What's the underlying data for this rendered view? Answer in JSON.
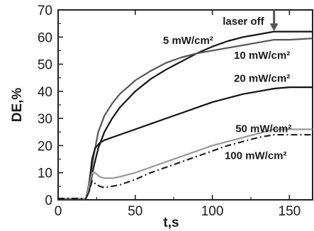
{
  "chart_data": {
    "type": "line",
    "xlabel": "t,s",
    "ylabel": "DE,%",
    "xlim": [
      0,
      165
    ],
    "ylim": [
      0,
      70
    ],
    "x_ticks": [
      0,
      50,
      100,
      150
    ],
    "y_ticks": [
      0,
      10,
      20,
      30,
      40,
      50,
      60,
      70
    ],
    "grid": false,
    "annotations": [
      {
        "text": "laser off",
        "x": 140,
        "y": 70
      }
    ],
    "series": [
      {
        "name": "5 mW/cm²",
        "color": "#111111",
        "style": "solid",
        "x": [
          0,
          18,
          20,
          23,
          26,
          30,
          35,
          40,
          50,
          60,
          70,
          80,
          90,
          100,
          110,
          120,
          130,
          140,
          150,
          165
        ],
        "y": [
          0.5,
          0.5,
          3,
          12,
          19,
          25,
          30,
          34,
          40,
          44.5,
          48,
          51,
          54,
          56.5,
          58.5,
          60,
          61,
          62,
          62,
          62
        ]
      },
      {
        "name": "10 mW/cm²",
        "color": "#555555",
        "style": "solid",
        "x": [
          0,
          18,
          20,
          23,
          26,
          30,
          35,
          40,
          50,
          60,
          70,
          80,
          90,
          100,
          110,
          120,
          130,
          140,
          150,
          165
        ],
        "y": [
          0.5,
          0.5,
          6,
          16,
          25,
          31,
          35.5,
          39,
          44,
          47.5,
          50.5,
          52.5,
          54,
          55,
          56,
          57,
          58,
          59,
          59,
          59.5
        ]
      },
      {
        "name": "20 mW/cm²",
        "color": "#111111",
        "style": "solid",
        "x": [
          0,
          18,
          20,
          22,
          24,
          27,
          30,
          40,
          50,
          60,
          70,
          80,
          90,
          100,
          110,
          120,
          130,
          140,
          150,
          165
        ],
        "y": [
          0.5,
          0.5,
          5,
          15,
          19,
          21,
          22,
          24,
          26,
          28,
          30,
          32,
          34,
          36,
          37.5,
          39,
          40,
          41,
          41.5,
          41.5
        ]
      },
      {
        "name": "50 mW/cm²",
        "color": "#999999",
        "style": "solid",
        "x": [
          0,
          18,
          20,
          22,
          24,
          27,
          30,
          35,
          40,
          50,
          60,
          70,
          80,
          90,
          100,
          110,
          120,
          130,
          140,
          150,
          165
        ],
        "y": [
          0.5,
          0.5,
          5,
          10,
          10,
          8.5,
          8,
          8,
          8.5,
          10,
          12,
          14,
          16,
          18,
          20,
          21.5,
          23,
          24.5,
          26,
          26,
          26
        ]
      },
      {
        "name": "100 mW/cm²",
        "color": "#222222",
        "style": "dashdot",
        "x": [
          0,
          18,
          20,
          22,
          24,
          27,
          30,
          35,
          40,
          50,
          60,
          70,
          80,
          90,
          100,
          110,
          120,
          130,
          140,
          150,
          165
        ],
        "y": [
          0.5,
          0.5,
          3,
          7,
          6,
          5,
          4.5,
          5,
          5.5,
          7.5,
          10,
          12,
          14,
          16,
          18,
          20,
          21.5,
          23,
          24,
          24,
          24
        ]
      }
    ],
    "series_labels": [
      {
        "text": "5 mW/cm²",
        "x": 68,
        "y": 57.5
      },
      {
        "text": "10 mW/cm²",
        "x": 114,
        "y": 52
      },
      {
        "text": "20 mW/cm²",
        "x": 114,
        "y": 43.5
      },
      {
        "text": "50 mW/cm²",
        "x": 115,
        "y": 25
      },
      {
        "text": "100 mW/cm²",
        "x": 108,
        "y": 15
      }
    ]
  }
}
